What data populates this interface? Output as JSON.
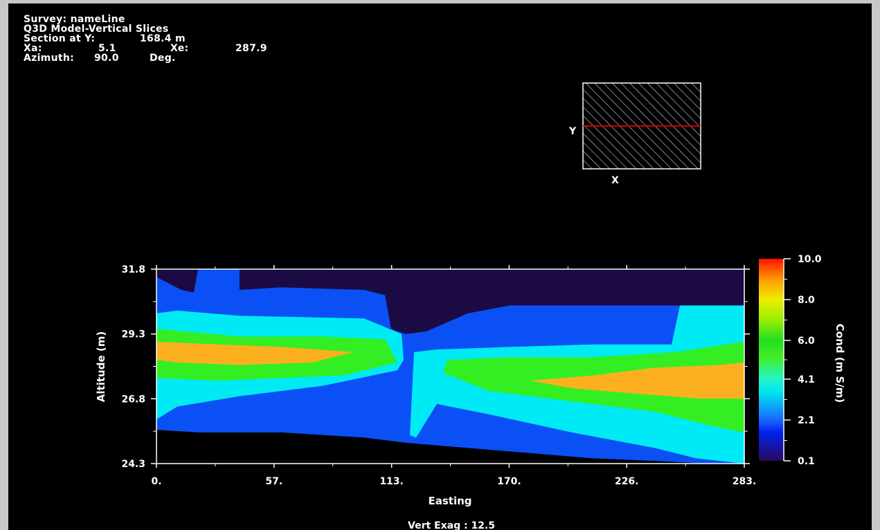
{
  "header": {
    "survey": "Survey: nameLine",
    "model": "Q3D Model-Vertical Slices",
    "section_label": "Section at Y:",
    "section_value": "168.4 m",
    "xa_label": "Xa:",
    "xa_value": "5.1",
    "xe_label": "Xe:",
    "xe_value": "287.9",
    "azimuth_label": "Azimuth:",
    "azimuth_value": "90.0",
    "azimuth_unit": "Deg."
  },
  "locator": {
    "y_label": "Y",
    "x_label": "X",
    "line_color": "#cc0000"
  },
  "chart_data": {
    "type": "heatmap",
    "title": "",
    "xlabel": "Easting",
    "ylabel": "Altitude (m)",
    "xlim": [
      0,
      283
    ],
    "ylim": [
      24.3,
      31.8
    ],
    "x_ticks": [
      "0.",
      "57.",
      "113.",
      "170.",
      "226.",
      "283."
    ],
    "y_ticks": [
      "31.8",
      "29.3",
      "26.8",
      "24.3"
    ],
    "colorbar": {
      "label": "Cond (m S/m)",
      "ticks": [
        "10.0",
        "8.0",
        "6.0",
        "4.1",
        "2.1",
        "0.1"
      ],
      "stops": [
        {
          "level": 0.1,
          "color": "#2a0a5e"
        },
        {
          "level": 1.5,
          "color": "#0022ee"
        },
        {
          "level": 2.1,
          "color": "#1a66ff"
        },
        {
          "level": 3.5,
          "color": "#00e8f0"
        },
        {
          "level": 4.1,
          "color": "#22f5c8"
        },
        {
          "level": 5.2,
          "color": "#44ee22"
        },
        {
          "level": 6.0,
          "color": "#22dd22"
        },
        {
          "level": 7.0,
          "color": "#99ee00"
        },
        {
          "level": 8.0,
          "color": "#eeee00"
        },
        {
          "level": 9.0,
          "color": "#ff9900"
        },
        {
          "level": 10.0,
          "color": "#ff1100"
        }
      ]
    },
    "class_colors": {
      "very_low": "#1c0a44",
      "low": "#0a50f5",
      "medium": "#00eaf5",
      "high": "#33ee22",
      "very_high": "#fcb020"
    },
    "regions": [
      {
        "class": "very_low",
        "points": [
          [
            0,
            31.8
          ],
          [
            283,
            31.8
          ],
          [
            283,
            30.4
          ],
          [
            170,
            30.4
          ],
          [
            150,
            30.1
          ],
          [
            130,
            29.4
          ],
          [
            120,
            29.3
          ],
          [
            113,
            29.5
          ],
          [
            110,
            30.8
          ],
          [
            100,
            31.0
          ],
          [
            60,
            31.1
          ],
          [
            40,
            31.0
          ],
          [
            40,
            31.8
          ],
          [
            20,
            31.8
          ],
          [
            18,
            30.9
          ],
          [
            12,
            31.0
          ],
          [
            0,
            31.5
          ]
        ]
      },
      {
        "class": "low",
        "points": [
          [
            0,
            31.5
          ],
          [
            12,
            31.0
          ],
          [
            18,
            30.9
          ],
          [
            20,
            31.8
          ],
          [
            40,
            31.8
          ],
          [
            40,
            31.0
          ],
          [
            60,
            31.1
          ],
          [
            100,
            31.0
          ],
          [
            110,
            30.8
          ],
          [
            113,
            29.5
          ],
          [
            120,
            29.3
          ],
          [
            130,
            29.4
          ],
          [
            150,
            30.1
          ],
          [
            170,
            30.4
          ],
          [
            283,
            30.4
          ],
          [
            283,
            24.3
          ],
          [
            265,
            24.3
          ],
          [
            240,
            24.4
          ],
          [
            210,
            24.5
          ],
          [
            150,
            24.9
          ],
          [
            120,
            25.1
          ],
          [
            100,
            25.3
          ],
          [
            60,
            25.5
          ],
          [
            20,
            25.5
          ],
          [
            0,
            25.6
          ]
        ]
      },
      {
        "class": "medium",
        "points": [
          [
            0,
            30.1
          ],
          [
            10,
            30.2
          ],
          [
            40,
            30.0
          ],
          [
            100,
            29.9
          ],
          [
            118,
            29.3
          ],
          [
            119,
            28.3
          ],
          [
            116,
            27.9
          ],
          [
            80,
            27.3
          ],
          [
            40,
            26.9
          ],
          [
            10,
            26.5
          ],
          [
            0,
            26.0
          ],
          [
            0,
            30.1
          ]
        ]
      },
      {
        "class": "medium",
        "points": [
          [
            122,
            25.4
          ],
          [
            124,
            28.6
          ],
          [
            135,
            28.7
          ],
          [
            170,
            28.8
          ],
          [
            210,
            28.9
          ],
          [
            248,
            28.9
          ],
          [
            252,
            30.4
          ],
          [
            283,
            30.4
          ],
          [
            283,
            24.3
          ],
          [
            260,
            24.5
          ],
          [
            240,
            24.9
          ],
          [
            200,
            25.5
          ],
          [
            160,
            26.2
          ],
          [
            135,
            26.6
          ],
          [
            125,
            25.3
          ]
        ]
      },
      {
        "class": "high",
        "points": [
          [
            0,
            29.5
          ],
          [
            40,
            29.2
          ],
          [
            80,
            29.2
          ],
          [
            110,
            29.1
          ],
          [
            116,
            28.2
          ],
          [
            90,
            27.7
          ],
          [
            60,
            27.6
          ],
          [
            30,
            27.5
          ],
          [
            0,
            27.6
          ]
        ]
      },
      {
        "class": "high",
        "points": [
          [
            138,
            27.8
          ],
          [
            140,
            28.3
          ],
          [
            170,
            28.4
          ],
          [
            210,
            28.4
          ],
          [
            250,
            28.6
          ],
          [
            283,
            29.0
          ],
          [
            283,
            25.5
          ],
          [
            270,
            25.7
          ],
          [
            240,
            26.3
          ],
          [
            200,
            26.7
          ],
          [
            160,
            27.1
          ]
        ]
      },
      {
        "class": "very_high",
        "points": [
          [
            0,
            29.0
          ],
          [
            30,
            28.9
          ],
          [
            60,
            28.8
          ],
          [
            95,
            28.6
          ],
          [
            75,
            28.2
          ],
          [
            40,
            28.1
          ],
          [
            10,
            28.2
          ],
          [
            0,
            28.3
          ]
        ]
      },
      {
        "class": "very_high",
        "points": [
          [
            180,
            27.5
          ],
          [
            210,
            27.7
          ],
          [
            240,
            28.0
          ],
          [
            270,
            28.1
          ],
          [
            283,
            28.2
          ],
          [
            283,
            26.8
          ],
          [
            262,
            26.8
          ],
          [
            230,
            27.0
          ],
          [
            200,
            27.2
          ]
        ]
      },
      {
        "class": "void",
        "points": [
          [
            0,
            25.6
          ],
          [
            20,
            25.5
          ],
          [
            60,
            25.5
          ],
          [
            100,
            25.3
          ],
          [
            120,
            25.1
          ],
          [
            150,
            24.9
          ],
          [
            210,
            24.5
          ],
          [
            240,
            24.4
          ],
          [
            265,
            24.3
          ],
          [
            0,
            24.3
          ]
        ]
      }
    ],
    "vertical_exaggeration_label": "Vert Exag : 12.5"
  }
}
